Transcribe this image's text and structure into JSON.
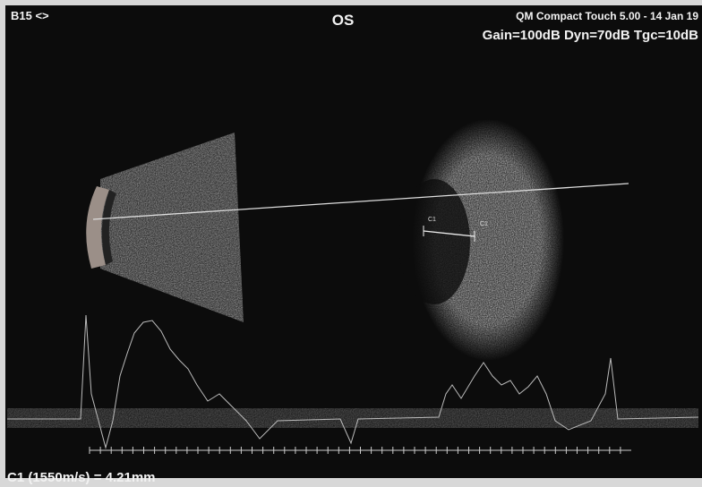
{
  "header": {
    "mode": "B15 <>",
    "eye": "OS",
    "device": "QM Compact Touch 5.00 - 14 Jan 19",
    "settings": "Gain=100dB Dyn=70dB Tgc=10dB"
  },
  "caliper": {
    "labels": [
      "C1",
      "C1"
    ]
  },
  "measurement": "C1 (1550m/s) = 4.21mm"
}
